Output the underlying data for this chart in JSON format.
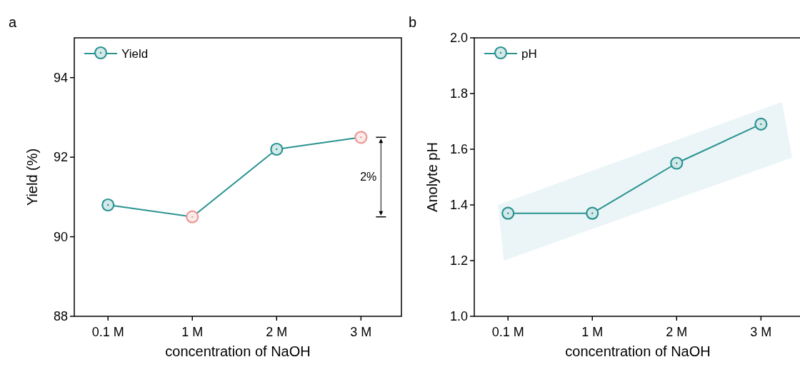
{
  "chart_data": [
    {
      "type": "line",
      "title": "a",
      "xlabel": "concentration of NaOH",
      "ylabel": "Yield (%)",
      "categories": [
        "0.1 M",
        "1 M",
        "2 M",
        "3 M"
      ],
      "series": [
        {
          "name": "Yield",
          "color": "#2a9391",
          "colors": [
            "#2a9391",
            "#eb9a96",
            "#2a9391",
            "#eb9a96"
          ],
          "values": [
            90.8,
            90.5,
            92.2,
            92.5
          ]
        }
      ],
      "ylim": [
        88,
        95
      ],
      "yticks": [
        88,
        90,
        92,
        94
      ],
      "legend": "top left",
      "marker": "circle",
      "grid": false,
      "annotations": [
        "2%"
      ]
    },
    {
      "type": "line",
      "title": "b",
      "xlabel": "concentration of NaOH",
      "ylabel": "Anolyte pH",
      "categories": [
        "0.1 M",
        "1 M",
        "2 M",
        "3 M"
      ],
      "series": [
        {
          "name": "pH",
          "color": "#2a9391",
          "values": [
            1.37,
            1.37,
            1.55,
            1.69
          ]
        }
      ],
      "ylim": [
        1.0,
        2.0
      ],
      "yticks": [
        {
          "value": 1.0,
          "label": "1.0"
        },
        1.2,
        1.4,
        1.6,
        1.8,
        {
          "value": 2.0,
          "label": "2.0"
        }
      ],
      "legend": "top left",
      "marker": "circle",
      "grid": false
    }
  ]
}
